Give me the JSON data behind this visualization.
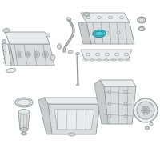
{
  "background_color": "#ffffff",
  "highlight_color": "#5bcfdc",
  "line_color": "#909898",
  "fill_light": "#e8ecee",
  "fill_mid": "#d8dcde",
  "fill_dark": "#c8ccce",
  "highlight_fill": "#5bcfdc",
  "highlight_edge": "#2090a0"
}
